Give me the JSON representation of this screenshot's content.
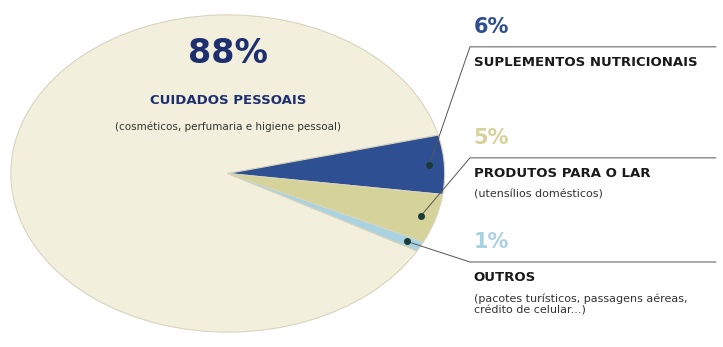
{
  "chart_data": {
    "type": "pie",
    "categories": [
      "CUIDADOS PESSOAIS",
      "SUPLEMENTOS NUTRICIONAIS",
      "PRODUTOS PARA O LAR",
      "OUTROS"
    ],
    "descriptions": [
      "(cosméticos, perfumaria e higiene pessoal)",
      null,
      "(utensílios domésticos)",
      "(pacotes turísticos, passagens aéreas, crédito de celular...)"
    ],
    "values": [
      88,
      6,
      5,
      1
    ],
    "value_labels": [
      "88%",
      "6%",
      "5%",
      "1%"
    ],
    "colors": [
      "#f2efdc",
      "#2e4f91",
      "#d6d39a",
      "#a9d3e0"
    ],
    "data_labels": true
  }
}
